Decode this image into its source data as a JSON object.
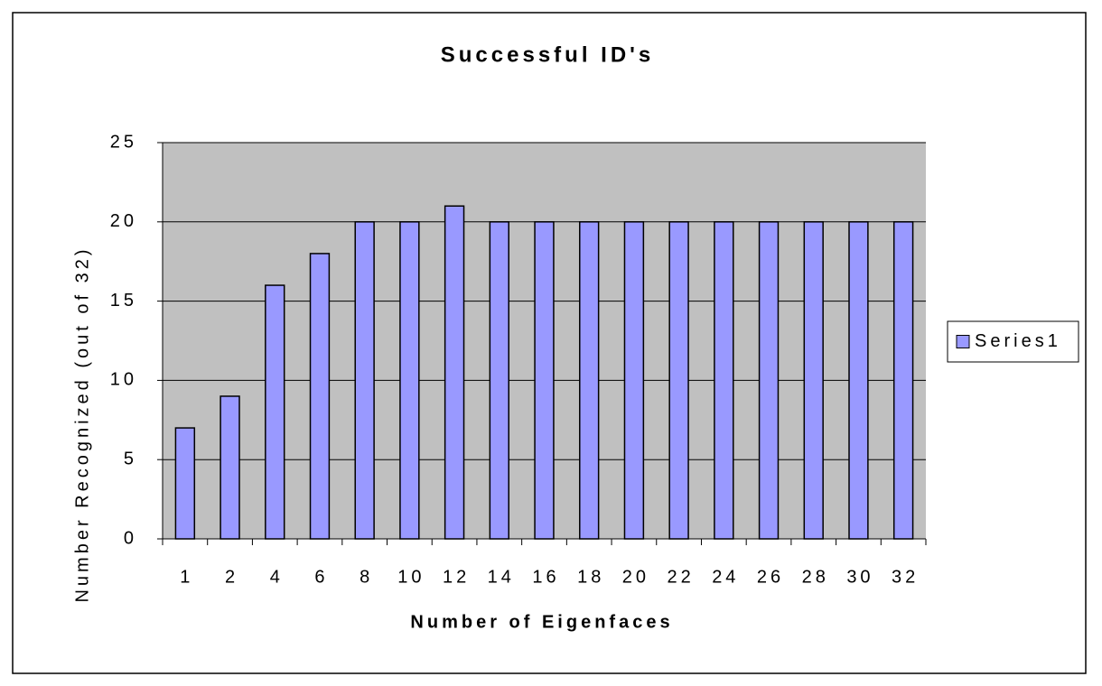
{
  "chart_data": {
    "type": "bar",
    "title": "Successful ID's",
    "x_label": "Number of Eigenfaces",
    "y_label": "Number Recognized (out of 32)",
    "categories": [
      "1",
      "2",
      "4",
      "6",
      "8",
      "10",
      "12",
      "14",
      "16",
      "18",
      "20",
      "22",
      "24",
      "26",
      "28",
      "30",
      "32"
    ],
    "series": [
      {
        "name": "Series1",
        "color": "#9999ff",
        "values": [
          7,
          9,
          16,
          18,
          20,
          20,
          21,
          20,
          20,
          20,
          20,
          20,
          20,
          20,
          20,
          20,
          20
        ]
      }
    ],
    "ylim": [
      0,
      25
    ],
    "yticks": [
      0,
      5,
      10,
      15,
      20,
      25
    ],
    "grid": true,
    "legend": "right"
  }
}
